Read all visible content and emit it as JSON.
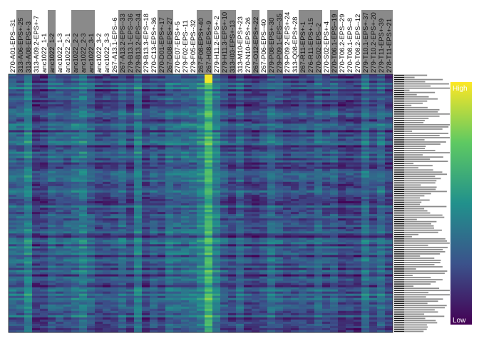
{
  "chart_data": {
    "type": "heatmap",
    "title": "",
    "xlabel": "",
    "ylabel": "",
    "columns": [
      "270-A01-EPS--31",
      "313-A06-EPS+-25",
      "313-A08-EPS+-3",
      "313-A09.2-EPS+-7",
      "anc1022_1-1",
      "anc1022_1-2",
      "anc1022_1-3",
      "anc1022_2-1",
      "anc1022_2-2",
      "anc1022_2-3",
      "anc1022_3-1",
      "anc1022_3-2",
      "anc1022_3-3",
      "267-A13.1-EPS--6",
      "267-A13.2-EPS--33",
      "279-B13.1-EPS--36",
      "279-B13.2-EPS--34",
      "279-B13.3-EPS--18",
      "270-C13-EPS+-36",
      "270-D01-EPS+-17",
      "267-D08-EPS+-27",
      "270-E07-EPS+-5",
      "279-F02-EPS--11",
      "279-F05-EPS--32",
      "267-F08-EPS+-40",
      "267-H08-EPS+-9",
      "279-H11.2-EPS+-2",
      "279-H11.3-EPS+-10",
      "313-I03-EPS+-13",
      "313-M10-EPS+-23",
      "270-N10-EPS+-26",
      "267-O12-EPS+-22",
      "267-P06-EPS--40",
      "279-P08-EPS+-30",
      "279-P09.1-EPS--35",
      "279-P09.2-EPS+-24",
      "313-Q08-EPS+-28",
      "267-R11-EPS+-1",
      "276-R11-EPS+-15",
      "270-S02-EPS--2",
      "270-S02-EPS+-4",
      "270-T06.1-EPS--19",
      "270-T06.2-EPS--29",
      "270-T08.1-EPS--8",
      "270-T08.2-EPS--12",
      "279-T10.1-EPS+-37",
      "279-T10.2-EPS+-20",
      "279-T11-EPS+-39",
      "278-T11-EPS+-21"
    ],
    "highlighted_columns": [
      "313-A06-EPS+-25",
      "313-A08-EPS+-3",
      "anc1022_1-2",
      "anc1022_2-2",
      "anc1022_2-3",
      "anc1022_3-1",
      "267-A13.2-EPS--33",
      "279-B13.1-EPS--36",
      "279-B13.2-EPS--34",
      "270-D01-EPS+-17",
      "267-D08-EPS+-27",
      "267-F08-EPS+-40",
      "267-H08-EPS+-9",
      "279-H11.3-EPS+-10",
      "313-I03-EPS+-13",
      "267-O12-EPS+-22",
      "279-P08-EPS+-30",
      "279-P09.1-EPS--35",
      "267-R11-EPS+-1",
      "276-R11-EPS+-15",
      "270-S02-EPS--2",
      "270-T06.1-EPS--19",
      "279-T10.1-EPS+-37",
      "279-T10.2-EPS+-20",
      "279-T11-EPS+-39",
      "278-T11-EPS+-21"
    ],
    "n_rows": 120,
    "value_range": [
      0,
      1
    ],
    "colorscale": "viridis",
    "row_bars": true,
    "legend": {
      "placement": "right",
      "high_label": "High",
      "low_label": "Low"
    },
    "colors": {
      "low": "#440154",
      "mid": "#21918c",
      "high": "#fde725",
      "bar": "#8c8c8c",
      "header": "#8a8a8a"
    }
  }
}
